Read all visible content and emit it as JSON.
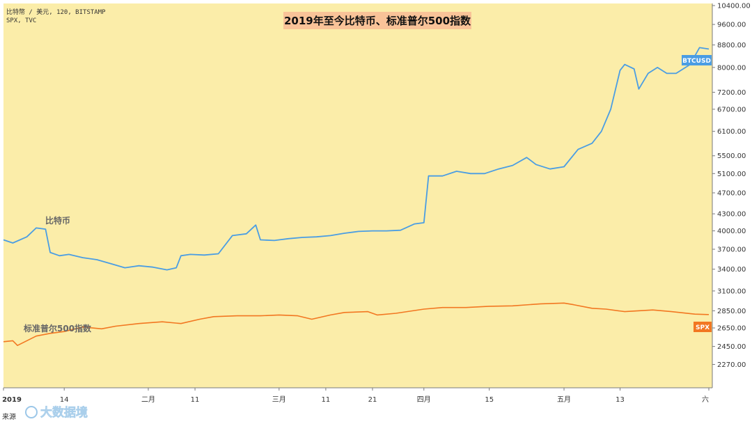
{
  "meta": {
    "line1": "比特幣 / 美元, 120, BITSTAMP",
    "line2": "SPX, TVC"
  },
  "title": "2019年至今比特币、标准普尔500指数",
  "labels": {
    "btc": "比特币",
    "spx": "标准普尔500指数"
  },
  "tags": {
    "btc": "BTCUSD",
    "spx": "SPX"
  },
  "watermark": "大数据境",
  "source_text": "来源",
  "colors": {
    "background": "#fbeda9",
    "btc": "#4a9de3",
    "spx": "#f27721",
    "title_box": "#f9c398"
  },
  "chart_data": {
    "type": "line",
    "title": "2019年至今比特币、标准普尔500指数",
    "y_scale": "log",
    "ylim": [
      2130,
      10400
    ],
    "y_ticks": [
      "10400.00",
      "9600.00",
      "8800.00",
      "8000.00",
      "7200.00",
      "6700.00",
      "6100.00",
      "5500.00",
      "5100.00",
      "4700.00",
      "4300.00",
      "4000.00",
      "3700.00",
      "3400.00",
      "3100.00",
      "2850.00",
      "2650.00",
      "2450.00",
      "2270.00"
    ],
    "x_ticks": [
      "2019",
      "14",
      "二月",
      "11",
      "三月",
      "11",
      "21",
      "四月",
      "15",
      "五月",
      "13",
      "六"
    ],
    "xlim": [
      "2019-01-01",
      "2019-06-01"
    ],
    "x_tick_dates": [
      "2019-01-01",
      "2019-01-14",
      "2019-02-01",
      "2019-02-11",
      "2019-03-01",
      "2019-03-11",
      "2019-03-21",
      "2019-04-01",
      "2019-04-15",
      "2019-05-01",
      "2019-05-13",
      "2019-06-01"
    ],
    "series": [
      {
        "name": "BTCUSD",
        "x": [
          "2019-01-01",
          "2019-01-03",
          "2019-01-06",
          "2019-01-08",
          "2019-01-10",
          "2019-01-11",
          "2019-01-13",
          "2019-01-15",
          "2019-01-18",
          "2019-01-21",
          "2019-01-24",
          "2019-01-27",
          "2019-01-30",
          "2019-02-02",
          "2019-02-05",
          "2019-02-07",
          "2019-02-08",
          "2019-02-10",
          "2019-02-13",
          "2019-02-16",
          "2019-02-19",
          "2019-02-22",
          "2019-02-24",
          "2019-02-25",
          "2019-02-28",
          "2019-03-01",
          "2019-03-03",
          "2019-03-06",
          "2019-03-09",
          "2019-03-12",
          "2019-03-15",
          "2019-03-18",
          "2019-03-21",
          "2019-03-24",
          "2019-03-27",
          "2019-03-30",
          "2019-04-01",
          "2019-04-02",
          "2019-04-05",
          "2019-04-08",
          "2019-04-11",
          "2019-04-14",
          "2019-04-17",
          "2019-04-20",
          "2019-04-23",
          "2019-04-25",
          "2019-04-28",
          "2019-05-01",
          "2019-05-04",
          "2019-05-07",
          "2019-05-09",
          "2019-05-11",
          "2019-05-13",
          "2019-05-14",
          "2019-05-16",
          "2019-05-17",
          "2019-05-19",
          "2019-05-21",
          "2019-05-23",
          "2019-05-25",
          "2019-05-28",
          "2019-05-30",
          "2019-06-01"
        ],
        "y": [
          3850,
          3800,
          3900,
          4050,
          4030,
          3650,
          3600,
          3620,
          3570,
          3540,
          3480,
          3420,
          3450,
          3430,
          3390,
          3420,
          3600,
          3620,
          3610,
          3630,
          3920,
          3950,
          4100,
          3850,
          3840,
          3850,
          3870,
          3890,
          3900,
          3920,
          3960,
          3990,
          4000,
          4000,
          4010,
          4120,
          4140,
          5050,
          5050,
          5150,
          5100,
          5100,
          5200,
          5280,
          5460,
          5300,
          5200,
          5250,
          5650,
          5800,
          6100,
          6700,
          7900,
          8100,
          7950,
          7300,
          7800,
          8000,
          7800,
          7800,
          8100,
          8700,
          8650
        ]
      },
      {
        "name": "SPX",
        "x": [
          "2019-01-01",
          "2019-01-03",
          "2019-01-04",
          "2019-01-08",
          "2019-01-11",
          "2019-01-14",
          "2019-01-18",
          "2019-01-22",
          "2019-01-25",
          "2019-01-30",
          "2019-02-04",
          "2019-02-08",
          "2019-02-12",
          "2019-02-15",
          "2019-02-20",
          "2019-02-25",
          "2019-03-01",
          "2019-03-05",
          "2019-03-08",
          "2019-03-12",
          "2019-03-15",
          "2019-03-20",
          "2019-03-22",
          "2019-03-26",
          "2019-04-01",
          "2019-04-05",
          "2019-04-10",
          "2019-04-15",
          "2019-04-20",
          "2019-04-26",
          "2019-05-01",
          "2019-05-03",
          "2019-05-07",
          "2019-05-10",
          "2019-05-14",
          "2019-05-20",
          "2019-05-24",
          "2019-05-29",
          "2019-06-01"
        ],
        "y": [
          2500,
          2510,
          2460,
          2560,
          2590,
          2610,
          2660,
          2640,
          2670,
          2700,
          2720,
          2700,
          2750,
          2780,
          2790,
          2790,
          2800,
          2790,
          2750,
          2800,
          2830,
          2840,
          2800,
          2820,
          2870,
          2890,
          2890,
          2905,
          2910,
          2935,
          2945,
          2925,
          2880,
          2870,
          2840,
          2860,
          2840,
          2810,
          2805
        ]
      }
    ]
  }
}
